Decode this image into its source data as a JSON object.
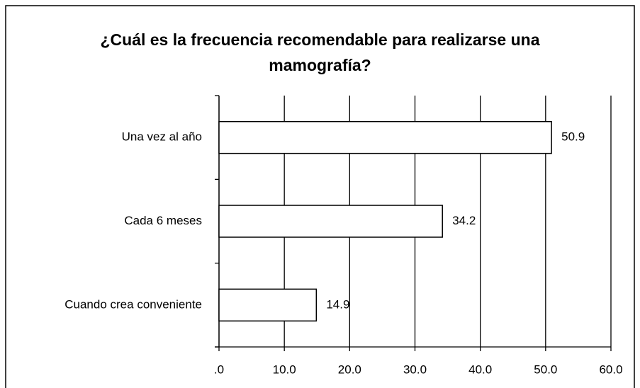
{
  "chart_data": {
    "type": "bar",
    "orientation": "horizontal",
    "title": "¿Cuál es la frecuencia recomendable para realizarse una mamografía?",
    "categories": [
      "Una vez al año",
      "Cada 6 meses",
      "Cuando crea conveniente"
    ],
    "values": [
      50.9,
      34.2,
      14.9
    ],
    "color": "#ffffff",
    "xlim": [
      0,
      60
    ],
    "xticks": [
      {
        "value": 0,
        "label": ".0"
      },
      {
        "value": 10,
        "label": "10.0"
      },
      {
        "value": 20,
        "label": "20.0"
      },
      {
        "value": 30,
        "label": "30.0"
      },
      {
        "value": 40,
        "label": "40.0"
      },
      {
        "value": 50,
        "label": "50.0"
      },
      {
        "value": 60,
        "label": "60.0"
      }
    ],
    "grid": true
  }
}
